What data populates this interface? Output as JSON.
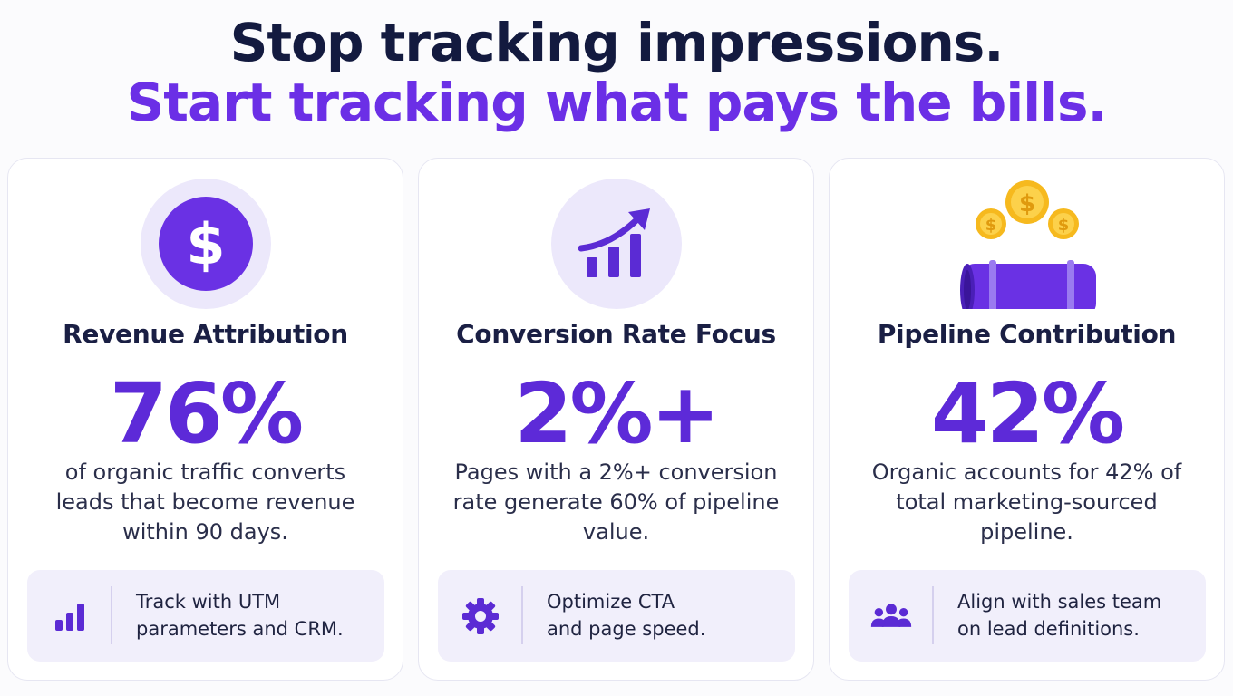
{
  "headline": {
    "line1": "Stop tracking impressions.",
    "line2": "Start tracking what pays the bills."
  },
  "colors": {
    "navy": "#131a3f",
    "purple": "#6b2fe6",
    "stat_purple": "#5d2ad8",
    "icon_bg": "#ece8fb",
    "tip_bg": "#f1effb",
    "gold": "#f6b91e"
  },
  "cards": [
    {
      "icon": "dollar-coin-icon",
      "title": "Revenue Attribution",
      "stat": "76%",
      "description": "of organic traffic converts leads that become revenue within 90 days.",
      "tip_icon": "bar-chart-icon",
      "tip_line1": "Track with UTM",
      "tip_line2": "parameters and CRM."
    },
    {
      "icon": "trending-up-chart-icon",
      "title": "Conversion Rate Focus",
      "stat": "2%+",
      "description": "Pages with a 2%+ conversion rate generate 60% of pipeline value.",
      "tip_icon": "gear-icon",
      "tip_line1": "Optimize CTA",
      "tip_line2": "and page speed."
    },
    {
      "icon": "pipeline-coins-icon",
      "title": "Pipeline Contribution",
      "stat": "42%",
      "description": "Organic accounts for 42% of total marketing-sourced pipeline.",
      "tip_icon": "team-icon",
      "tip_line1": "Align with sales team",
      "tip_line2": "on lead definitions."
    }
  ]
}
